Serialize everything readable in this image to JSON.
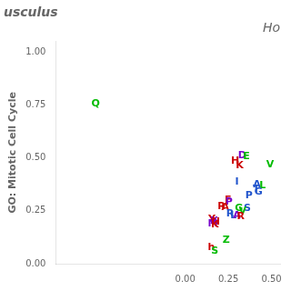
{
  "chart_data": {
    "type": "scatter",
    "title": "usculus",
    "subtitle": "Ho",
    "y_label": "GO: Mitotic Cell Cycle",
    "xlim": [
      -0.75,
      0.55
    ],
    "ylim": [
      0.0,
      1.05
    ],
    "xticks": [
      {
        "value": 0.0,
        "label": "0.00"
      },
      {
        "value": 0.25,
        "label": "0.25"
      },
      {
        "value": 0.5,
        "label": "0.50"
      }
    ],
    "yticks": [
      {
        "value": 0.0,
        "label": "0.00"
      },
      {
        "value": 0.25,
        "label": "0.25"
      },
      {
        "value": 0.5,
        "label": "0.50"
      },
      {
        "value": 0.75,
        "label": "0.75"
      },
      {
        "value": 1.0,
        "label": "1.00"
      }
    ],
    "grid": false,
    "marker": "text",
    "x": [
      -0.52,
      0.33,
      0.355,
      0.29,
      0.315,
      0.492,
      0.3,
      0.415,
      0.448,
      0.412,
      0.425,
      0.37,
      0.248,
      0.253,
      0.21,
      0.232,
      0.312,
      0.36,
      0.332,
      0.26,
      0.28,
      0.3,
      0.322,
      0.155,
      0.167,
      0.177,
      0.16,
      0.172,
      0.238,
      0.152,
      0.172
    ],
    "values": [
      0.755,
      0.51,
      0.505,
      0.483,
      0.463,
      0.468,
      0.388,
      0.375,
      0.368,
      0.352,
      0.34,
      0.32,
      0.302,
      0.293,
      0.272,
      0.265,
      0.263,
      0.263,
      0.248,
      0.235,
      0.228,
      0.228,
      0.222,
      0.212,
      0.203,
      0.196,
      0.188,
      0.182,
      0.113,
      0.077,
      0.058
    ],
    "point_labels": [
      "Q",
      "D",
      "E",
      "H",
      "K",
      "V",
      "I",
      "A",
      "L",
      "T",
      "G",
      "P",
      "F",
      "P",
      "R",
      "A",
      "G",
      "S",
      "V",
      "R",
      "L",
      "A",
      "R",
      "Y",
      "X",
      "N",
      "M",
      "K",
      "Z",
      "h",
      "S"
    ],
    "colors": [
      "#00bb00",
      "#7700cc",
      "#00bb00",
      "#cc0000",
      "#cc0000",
      "#00bb00",
      "#2255cc",
      "#2255cc",
      "#00bb00",
      "#2255cc",
      "#2255cc",
      "#2255cc",
      "#cc0000",
      "#7700cc",
      "#cc0000",
      "#cc0000",
      "#00bb00",
      "#2255cc",
      "#00bb00",
      "#2255cc",
      "#2255cc",
      "#7700cc",
      "#cc0000",
      "#cc0000",
      "#7700cc",
      "#cc0000",
      "#7700cc",
      "#cc0000",
      "#00bb00",
      "#cc0000",
      "#00bb00"
    ]
  }
}
